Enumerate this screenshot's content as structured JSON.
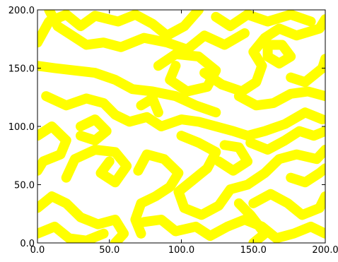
{
  "chart_data": {
    "type": "heatmap",
    "title": "",
    "xlabel": "",
    "ylabel": "",
    "xlim": [
      0.0,
      200.0
    ],
    "ylim": [
      0.0,
      200.0
    ],
    "x_ticks": [
      "0.0",
      "50.0",
      "100.0",
      "150.0",
      "200.0"
    ],
    "y_ticks": [
      "0.0",
      "50.0",
      "100.0",
      "150.0",
      "200.0"
    ],
    "grid": false,
    "legend": "none",
    "colors": {
      "pattern": "#ffff00",
      "background": "#ffffff",
      "axes": "#000000"
    },
    "series": [
      {
        "points": [
          [
            0,
            172
          ],
          [
            8,
            190
          ],
          [
            20,
            196
          ],
          [
            30,
            186
          ],
          [
            40,
            195
          ],
          [
            56,
            190
          ],
          [
            68,
            196
          ],
          [
            80,
            188
          ],
          [
            90,
            178
          ],
          [
            102,
            186
          ],
          [
            112,
            200
          ]
        ]
      },
      {
        "points": [
          [
            8,
            200
          ],
          [
            14,
            186
          ],
          [
            24,
            178
          ],
          [
            34,
            170
          ],
          [
            46,
            172
          ],
          [
            58,
            168
          ],
          [
            74,
            176
          ],
          [
            90,
            172
          ],
          [
            104,
            166
          ],
          [
            116,
            178
          ],
          [
            130,
            170
          ],
          [
            144,
            180
          ]
        ]
      },
      {
        "points": [
          [
            0,
            152
          ],
          [
            12,
            150
          ],
          [
            26,
            148
          ],
          [
            40,
            146
          ],
          [
            54,
            140
          ],
          [
            66,
            132
          ],
          [
            80,
            130
          ],
          [
            96,
            126
          ],
          [
            110,
            118
          ],
          [
            124,
            112
          ]
        ]
      },
      {
        "points": [
          [
            84,
            152
          ],
          [
            96,
            162
          ],
          [
            112,
            160
          ],
          [
            124,
            148
          ],
          [
            118,
            134
          ],
          [
            104,
            130
          ],
          [
            92,
            140
          ],
          [
            96,
            152
          ]
        ]
      },
      {
        "points": [
          [
            116,
            146
          ],
          [
            128,
            136
          ],
          [
            142,
            130
          ],
          [
            152,
            138
          ],
          [
            156,
            152
          ],
          [
            150,
            164
          ],
          [
            158,
            176
          ],
          [
            168,
            184
          ],
          [
            180,
            178
          ],
          [
            196,
            184
          ],
          [
            200,
            192
          ]
        ]
      },
      {
        "points": [
          [
            124,
            194
          ],
          [
            134,
            186
          ],
          [
            146,
            196
          ],
          [
            160,
            190
          ],
          [
            176,
            196
          ],
          [
            190,
            190
          ]
        ]
      },
      {
        "points": [
          [
            160,
            160
          ],
          [
            168,
            154
          ],
          [
            176,
            160
          ],
          [
            170,
            170
          ],
          [
            160,
            170
          ],
          [
            160,
            160
          ]
        ]
      },
      {
        "points": [
          [
            176,
            142
          ],
          [
            186,
            138
          ],
          [
            198,
            150
          ],
          [
            200,
            158
          ]
        ]
      },
      {
        "points": [
          [
            6,
            126
          ],
          [
            20,
            118
          ],
          [
            34,
            124
          ],
          [
            46,
            120
          ],
          [
            54,
            110
          ],
          [
            64,
            104
          ],
          [
            76,
            108
          ],
          [
            86,
            100
          ],
          [
            100,
            106
          ],
          [
            112,
            104
          ],
          [
            124,
            100
          ],
          [
            136,
            96
          ],
          [
            146,
            92
          ],
          [
            158,
            96
          ],
          [
            172,
            102
          ],
          [
            186,
            112
          ],
          [
            198,
            106
          ]
        ]
      },
      {
        "points": [
          [
            140,
            126
          ],
          [
            152,
            118
          ],
          [
            164,
            120
          ],
          [
            176,
            128
          ],
          [
            188,
            130
          ],
          [
            200,
            126
          ]
        ]
      },
      {
        "points": [
          [
            0,
            92
          ],
          [
            10,
            100
          ],
          [
            20,
            88
          ],
          [
            16,
            76
          ],
          [
            4,
            70
          ],
          [
            0,
            62
          ]
        ]
      },
      {
        "points": [
          [
            20,
            56
          ],
          [
            26,
            72
          ],
          [
            40,
            80
          ],
          [
            54,
            78
          ],
          [
            62,
            66
          ],
          [
            54,
            52
          ],
          [
            44,
            60
          ],
          [
            50,
            70
          ]
        ]
      },
      {
        "points": [
          [
            70,
            62
          ],
          [
            76,
            76
          ],
          [
            88,
            72
          ],
          [
            98,
            60
          ],
          [
            92,
            48
          ],
          [
            82,
            40
          ],
          [
            72,
            34
          ],
          [
            68,
            20
          ],
          [
            72,
            8
          ]
        ]
      },
      {
        "points": [
          [
            100,
            92
          ],
          [
            112,
            86
          ],
          [
            124,
            78
          ],
          [
            118,
            64
          ],
          [
            108,
            54
          ],
          [
            98,
            44
          ],
          [
            102,
            30
          ],
          [
            114,
            24
          ],
          [
            126,
            32
          ],
          [
            134,
            46
          ],
          [
            146,
            50
          ],
          [
            158,
            60
          ],
          [
            168,
            72
          ],
          [
            180,
            76
          ],
          [
            194,
            72
          ],
          [
            200,
            80
          ]
        ]
      },
      {
        "points": [
          [
            148,
            86
          ],
          [
            160,
            80
          ],
          [
            172,
            88
          ],
          [
            182,
            96
          ],
          [
            192,
            92
          ],
          [
            200,
            96
          ]
        ]
      },
      {
        "points": [
          [
            126,
            70
          ],
          [
            136,
            62
          ],
          [
            146,
            70
          ],
          [
            140,
            82
          ],
          [
            130,
            84
          ]
        ]
      },
      {
        "points": [
          [
            0,
            30
          ],
          [
            10,
            40
          ],
          [
            20,
            34
          ],
          [
            30,
            22
          ],
          [
            42,
            16
          ],
          [
            54,
            20
          ],
          [
            60,
            8
          ],
          [
            54,
            0
          ]
        ]
      },
      {
        "points": [
          [
            0,
            8
          ],
          [
            12,
            14
          ],
          [
            22,
            4
          ],
          [
            34,
            2
          ],
          [
            46,
            8
          ]
        ]
      },
      {
        "points": [
          [
            74,
            18
          ],
          [
            86,
            20
          ],
          [
            96,
            10
          ],
          [
            110,
            14
          ],
          [
            120,
            6
          ],
          [
            132,
            14
          ],
          [
            144,
            20
          ],
          [
            156,
            14
          ],
          [
            166,
            4
          ],
          [
            178,
            8
          ],
          [
            190,
            14
          ],
          [
            200,
            8
          ]
        ]
      },
      {
        "points": [
          [
            150,
            34
          ],
          [
            162,
            42
          ],
          [
            174,
            34
          ],
          [
            184,
            24
          ],
          [
            196,
            30
          ],
          [
            200,
            40
          ]
        ]
      },
      {
        "points": [
          [
            176,
            56
          ],
          [
            186,
            52
          ],
          [
            196,
            60
          ],
          [
            200,
            64
          ]
        ]
      },
      {
        "points": [
          [
            150,
            0
          ],
          [
            158,
            8
          ],
          [
            148,
            24
          ],
          [
            140,
            34
          ]
        ]
      },
      {
        "points": [
          [
            84,
            112
          ],
          [
            80,
            124
          ],
          [
            72,
            118
          ]
        ]
      },
      {
        "points": [
          [
            30,
            100
          ],
          [
            40,
            106
          ],
          [
            48,
            96
          ],
          [
            40,
            88
          ],
          [
            30,
            92
          ]
        ]
      }
    ]
  }
}
